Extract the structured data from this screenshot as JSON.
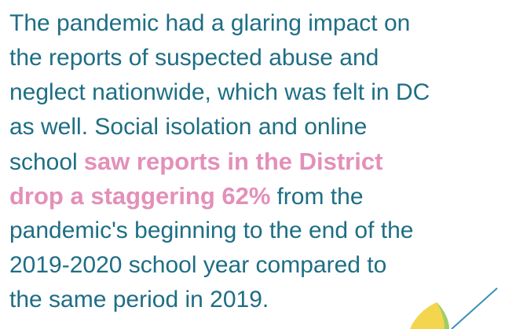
{
  "paragraph": {
    "lines": [
      {
        "segments": [
          {
            "text": "The pandemic had a glaring impact on",
            "highlight": false
          }
        ]
      },
      {
        "segments": [
          {
            "text": "the reports of suspected abuse and",
            "highlight": false
          }
        ]
      },
      {
        "segments": [
          {
            "text": "neglect nationwide, which was felt in DC",
            "highlight": false
          }
        ]
      },
      {
        "segments": [
          {
            "text": "as well. Social isolation and online",
            "highlight": false
          }
        ]
      },
      {
        "segments": [
          {
            "text": "school",
            "highlight": false
          },
          {
            "text": "saw reports in the District",
            "highlight": true
          }
        ]
      },
      {
        "segments": [
          {
            "text": "drop a staggering 62%",
            "highlight": true
          },
          {
            "text": "from the",
            "highlight": false
          }
        ]
      },
      {
        "segments": [
          {
            "text": "pandemic's beginning to the end of the",
            "highlight": false
          }
        ]
      },
      {
        "segments": [
          {
            "text": "2019-2020 school year compared to",
            "highlight": false
          }
        ]
      },
      {
        "segments": [
          {
            "text": "the same period in 2019.",
            "highlight": false
          }
        ]
      }
    ]
  }
}
